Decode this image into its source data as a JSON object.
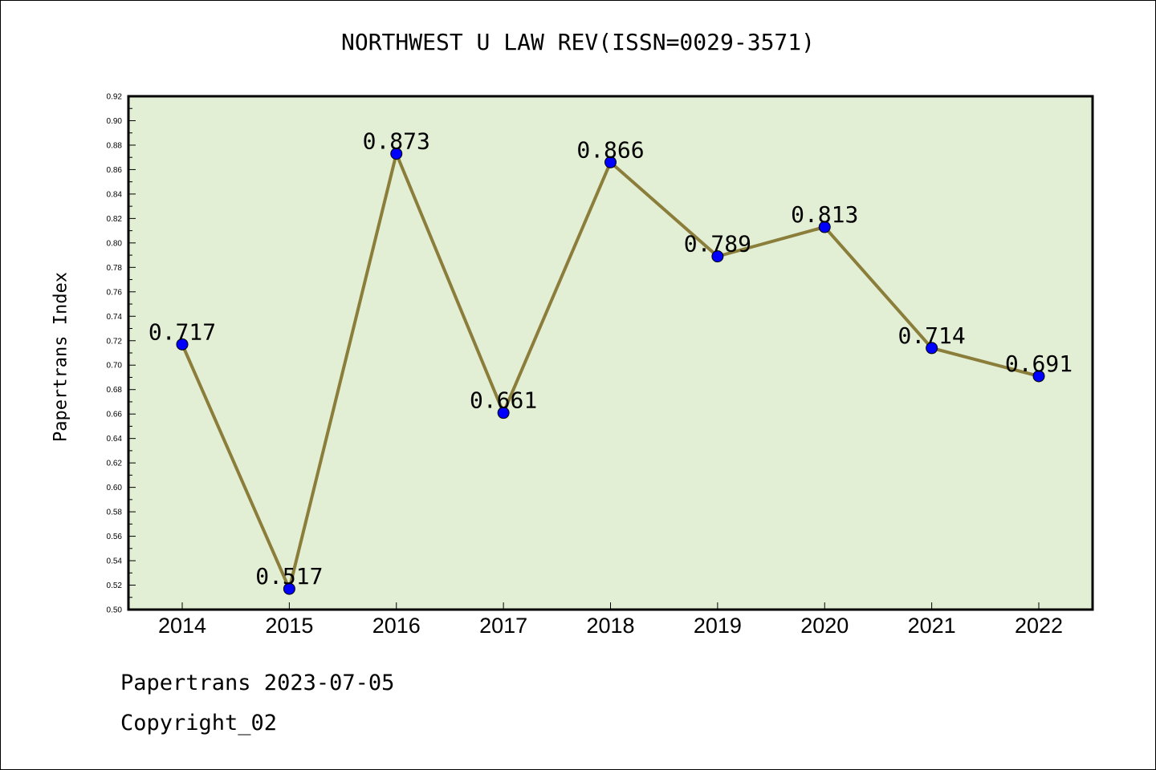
{
  "chart_data": {
    "type": "line",
    "title": "NORTHWEST U LAW REV(ISSN=0029-3571)",
    "ylabel": "Papertrans Index",
    "xlabel": "",
    "categories": [
      "2014",
      "2015",
      "2016",
      "2017",
      "2018",
      "2019",
      "2020",
      "2021",
      "2022"
    ],
    "values": [
      0.717,
      0.517,
      0.873,
      0.661,
      0.866,
      0.789,
      0.813,
      0.714,
      0.691
    ],
    "data_labels": [
      "0.717",
      "0.517",
      "0.873",
      "0.661",
      "0.866",
      "0.789",
      "0.813",
      "0.714",
      "0.691"
    ],
    "ylim": [
      0.5,
      0.92
    ],
    "yticks": [
      "0.50",
      "0.52",
      "0.54",
      "0.56",
      "0.58",
      "0.60",
      "0.62",
      "0.64",
      "0.66",
      "0.68",
      "0.70",
      "0.72",
      "0.74",
      "0.76",
      "0.78",
      "0.80",
      "0.82",
      "0.84",
      "0.86",
      "0.88",
      "0.90",
      "0.92"
    ],
    "grid": false,
    "colors": {
      "plot_background": "#e2efd5",
      "line": "#8b7d3a",
      "marker": "#0000ff"
    }
  },
  "footer": {
    "line1": "Papertrans 2023-07-05",
    "line2": "Copyright_02"
  }
}
